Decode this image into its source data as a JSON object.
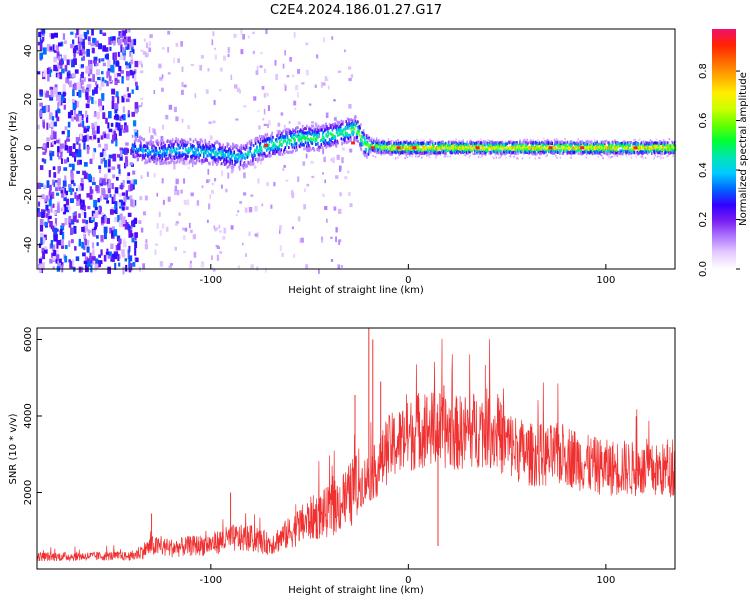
{
  "title": "C2E4.2024.186.01.27.G17",
  "chart_data": [
    {
      "type": "heatmap",
      "xlabel": "Height of straight line (km)",
      "ylabel": "Frequency (Hz)",
      "xlim": [
        -188,
        135
      ],
      "ylim": [
        -50,
        49
      ],
      "xticks": [
        -100,
        0,
        100
      ],
      "yticks": [
        -40,
        -20,
        0,
        20,
        40
      ],
      "colorbar": {
        "label": "Normalized spectral amplitude",
        "range": [
          0,
          0.97
        ],
        "ticks": [
          0.0,
          0.2,
          0.4,
          0.6,
          0.8
        ],
        "colormap": [
          "#ffffff",
          "#e6ccff",
          "#b07aff",
          "#7a1ff2",
          "#3300ff",
          "#0066ff",
          "#00ccff",
          "#00e6b0",
          "#00ff33",
          "#66ff00",
          "#ccff00",
          "#ffee00",
          "#ffaa00",
          "#ff6600",
          "#ff2200",
          "#f01070"
        ]
      },
      "ridge": [
        {
          "x": -140,
          "f": 0,
          "a": 0.35
        },
        {
          "x": -130,
          "f": -2,
          "a": 0.4
        },
        {
          "x": -115,
          "f": -1,
          "a": 0.45
        },
        {
          "x": -100,
          "f": -2,
          "a": 0.45
        },
        {
          "x": -85,
          "f": -4,
          "a": 0.45
        },
        {
          "x": -75,
          "f": 0,
          "a": 0.5
        },
        {
          "x": -65,
          "f": 2,
          "a": 0.55
        },
        {
          "x": -55,
          "f": 4,
          "a": 0.55
        },
        {
          "x": -45,
          "f": 4,
          "a": 0.55
        },
        {
          "x": -35,
          "f": 6,
          "a": 0.55
        },
        {
          "x": -27,
          "f": 8,
          "a": 0.6
        },
        {
          "x": -22,
          "f": 1,
          "a": 0.6
        },
        {
          "x": -10,
          "f": 0,
          "a": 0.75
        },
        {
          "x": 0,
          "f": 0,
          "a": 0.85
        },
        {
          "x": 20,
          "f": 0,
          "a": 0.8
        },
        {
          "x": 60,
          "f": 0,
          "a": 0.8
        },
        {
          "x": 100,
          "f": 0,
          "a": 0.8
        },
        {
          "x": 135,
          "f": 0,
          "a": 0.8
        }
      ],
      "hot_spots": [
        {
          "x": -72,
          "f": 1
        },
        {
          "x": -28,
          "f": 2
        },
        {
          "x": -18,
          "f": 0
        },
        {
          "x": -5,
          "f": 0
        },
        {
          "x": 3,
          "f": 0
        },
        {
          "x": 35,
          "f": 0
        },
        {
          "x": 72,
          "f": 0
        },
        {
          "x": 88,
          "f": 0
        },
        {
          "x": 115,
          "f": 0
        }
      ]
    },
    {
      "type": "line",
      "xlabel": "Height of straight line (km)",
      "ylabel": "SNR (10 * v/v)",
      "xlim": [
        -188,
        135
      ],
      "ylim": [
        0,
        6300
      ],
      "xticks": [
        -100,
        0,
        100
      ],
      "yticks": [
        2000,
        4000,
        6000
      ],
      "color": "#f03030",
      "x": [
        -188,
        -170,
        -150,
        -140,
        -130,
        -120,
        -110,
        -100,
        -90,
        -80,
        -70,
        -60,
        -50,
        -40,
        -35,
        -30,
        -25,
        -20,
        -15,
        -10,
        -5,
        0,
        5,
        10,
        15,
        20,
        25,
        30,
        40,
        50,
        60,
        70,
        80,
        90,
        100,
        110,
        120,
        135
      ],
      "y": [
        320,
        330,
        340,
        330,
        600,
        550,
        600,
        650,
        800,
        800,
        650,
        950,
        1300,
        1500,
        1700,
        1900,
        2200,
        2400,
        2650,
        3150,
        3300,
        3450,
        3650,
        3650,
        3650,
        3600,
        3550,
        3600,
        3700,
        3300,
        3000,
        2950,
        3000,
        2750,
        2650,
        2650,
        2550,
        2600
      ],
      "spikes": [
        {
          "x": -27,
          "y": 4550
        },
        {
          "x": -20,
          "y": 6300
        },
        {
          "x": -18,
          "y": 6000
        },
        {
          "x": -14,
          "y": 4900
        },
        {
          "x": 18,
          "y": 4800
        },
        {
          "x": 15,
          "y": 600
        },
        {
          "x": -130,
          "y": 1450
        },
        {
          "x": -90,
          "y": 2000
        }
      ]
    }
  ]
}
